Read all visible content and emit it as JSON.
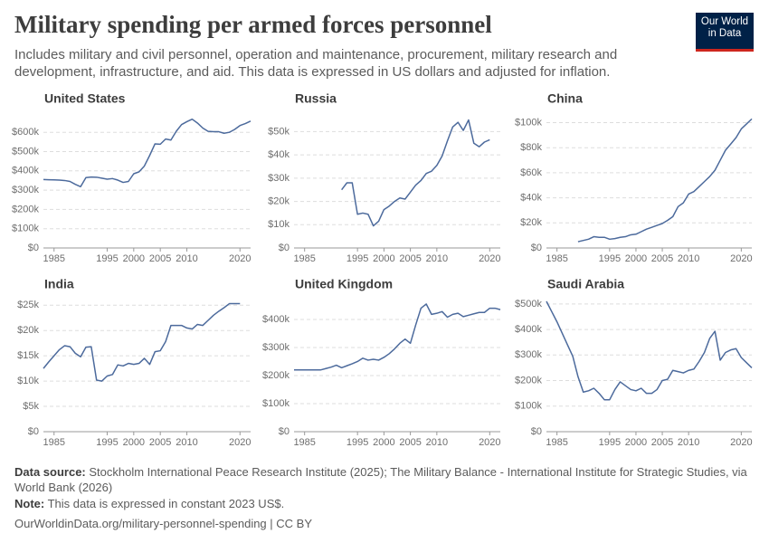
{
  "header": {
    "title": "Military spending per armed forces personnel",
    "subtitle": "Includes military and civil personnel, operation and maintenance, procurement, military research and development, infrastructure, and aid. This data is expressed in US dollars and adjusted for inflation."
  },
  "logo": {
    "line1": "Our World",
    "line2": "in Data"
  },
  "footer": {
    "source_label": "Data source:",
    "source": "Stockholm International Peace Research Institute (2025); The Military Balance - International Institute for Strategic Studies, via World Bank (2026)",
    "note_label": "Note:",
    "note": "This data is expressed in constant 2023 US$.",
    "url": "OurWorldinData.org/military-personnel-spending | CC BY"
  },
  "chart_data": [
    {
      "type": "line",
      "title": "United States",
      "color": "#4c6a9c",
      "grid": true,
      "x": [
        1983,
        1984,
        1985,
        1986,
        1987,
        1988,
        1989,
        1990,
        1991,
        1992,
        1993,
        1994,
        1995,
        1996,
        1997,
        1998,
        1999,
        2000,
        2001,
        2002,
        2003,
        2004,
        2005,
        2006,
        2007,
        2008,
        2009,
        2010,
        2011,
        2012,
        2013,
        2014,
        2015,
        2016,
        2017,
        2018,
        2019,
        2020,
        2021,
        2022
      ],
      "values": [
        355000,
        354000,
        353000,
        352000,
        350000,
        345000,
        330000,
        318000,
        365000,
        368000,
        367000,
        362000,
        357000,
        360000,
        352000,
        340000,
        345000,
        385000,
        395000,
        425000,
        480000,
        540000,
        538000,
        565000,
        560000,
        605000,
        640000,
        655000,
        668000,
        648000,
        622000,
        605000,
        603000,
        603000,
        595000,
        600000,
        615000,
        635000,
        645000,
        658000
      ],
      "xlim": [
        1983,
        2022
      ],
      "xticks": [
        1985,
        1995,
        2000,
        2005,
        2010,
        2020
      ],
      "ylim": [
        0,
        676000
      ],
      "yticks": [
        {
          "value": 0,
          "label": "$0"
        },
        {
          "value": 100000,
          "label": "$100k"
        },
        {
          "value": 200000,
          "label": "$200k"
        },
        {
          "value": 300000,
          "label": "$300k"
        },
        {
          "value": 400000,
          "label": "$400k"
        },
        {
          "value": 500000,
          "label": "$500k"
        },
        {
          "value": 600000,
          "label": "$600k"
        }
      ]
    },
    {
      "type": "line",
      "title": "Russia",
      "color": "#4c6a9c",
      "grid": true,
      "x": [
        1992,
        1993,
        1994,
        1995,
        1996,
        1997,
        1998,
        1999,
        2000,
        2001,
        2002,
        2003,
        2004,
        2005,
        2006,
        2007,
        2008,
        2009,
        2010,
        2011,
        2012,
        2013,
        2014,
        2015,
        2016,
        2017,
        2018,
        2019,
        2020,
        2021,
        2022
      ],
      "values": [
        25000,
        28000,
        28000,
        14500,
        15000,
        14500,
        9500,
        11500,
        16500,
        18000,
        20000,
        21500,
        21000,
        24000,
        27000,
        29000,
        32000,
        33000,
        35500,
        39500,
        46000,
        52000,
        54000,
        50500,
        55000,
        45000,
        43500,
        45500,
        46500,
        null,
        null
      ],
      "xlim": [
        1983,
        2022
      ],
      "xticks": [
        1985,
        1995,
        2000,
        2005,
        2010,
        2020
      ],
      "ylim": [
        0,
        56000
      ],
      "yticks": [
        {
          "value": 0,
          "label": "$0"
        },
        {
          "value": 10000,
          "label": "$10k"
        },
        {
          "value": 20000,
          "label": "$20k"
        },
        {
          "value": 30000,
          "label": "$30k"
        },
        {
          "value": 40000,
          "label": "$40k"
        },
        {
          "value": 50000,
          "label": "$50k"
        }
      ]
    },
    {
      "type": "line",
      "title": "China",
      "color": "#4c6a9c",
      "grid": true,
      "x": [
        1989,
        1990,
        1991,
        1992,
        1993,
        1994,
        1995,
        1996,
        1997,
        1998,
        1999,
        2000,
        2001,
        2002,
        2003,
        2004,
        2005,
        2006,
        2007,
        2008,
        2009,
        2010,
        2011,
        2012,
        2013,
        2014,
        2015,
        2016,
        2017,
        2018,
        2019,
        2020,
        2021,
        2022
      ],
      "values": [
        5000,
        6000,
        7000,
        9000,
        8500,
        8500,
        7000,
        7500,
        8500,
        9000,
        10500,
        11000,
        13000,
        15000,
        16500,
        18000,
        19500,
        22000,
        25000,
        33000,
        36000,
        43000,
        45000,
        49000,
        53000,
        57000,
        62000,
        70000,
        78000,
        83000,
        88000,
        95000,
        99000,
        103000
      ],
      "xlim": [
        1983,
        2022
      ],
      "xticks": [
        1985,
        1995,
        2000,
        2005,
        2010,
        2020
      ],
      "ylim": [
        0,
        104000
      ],
      "yticks": [
        {
          "value": 0,
          "label": "$0"
        },
        {
          "value": 20000,
          "label": "$20k"
        },
        {
          "value": 40000,
          "label": "$40k"
        },
        {
          "value": 60000,
          "label": "$60k"
        },
        {
          "value": 80000,
          "label": "$80k"
        },
        {
          "value": 100000,
          "label": "$100k"
        }
      ]
    },
    {
      "type": "line",
      "title": "India",
      "color": "#4c6a9c",
      "grid": true,
      "x": [
        1983,
        1984,
        1985,
        1986,
        1987,
        1988,
        1989,
        1990,
        1991,
        1992,
        1993,
        1994,
        1995,
        1996,
        1997,
        1998,
        1999,
        2000,
        2001,
        2002,
        2003,
        2004,
        2005,
        2006,
        2007,
        2008,
        2009,
        2010,
        2011,
        2012,
        2013,
        2014,
        2015,
        2016,
        2017,
        2018,
        2019,
        2020,
        2021,
        2022
      ],
      "values": [
        12500,
        13800,
        15000,
        16200,
        17000,
        16800,
        15500,
        14800,
        16700,
        16800,
        10200,
        10000,
        11000,
        11300,
        13200,
        13000,
        13500,
        13300,
        13500,
        14500,
        13300,
        15800,
        16000,
        17800,
        21000,
        21000,
        21000,
        20500,
        20300,
        21200,
        21000,
        22000,
        23000,
        23800,
        24500,
        25300,
        25300,
        25300,
        null,
        null
      ],
      "xlim": [
        1983,
        2022
      ],
      "xticks": [
        1985,
        1995,
        2000,
        2005,
        2010,
        2020
      ],
      "ylim": [
        0,
        25400
      ],
      "yticks": [
        {
          "value": 0,
          "label": "$0"
        },
        {
          "value": 5000,
          "label": "$5k"
        },
        {
          "value": 10000,
          "label": "$10k"
        },
        {
          "value": 15000,
          "label": "$15k"
        },
        {
          "value": 20000,
          "label": "$20k"
        },
        {
          "value": 25000,
          "label": "$25k"
        }
      ]
    },
    {
      "type": "line",
      "title": "United Kingdom",
      "color": "#4c6a9c",
      "grid": true,
      "x": [
        1983,
        1984,
        1985,
        1986,
        1987,
        1988,
        1989,
        1990,
        1991,
        1992,
        1993,
        1994,
        1995,
        1996,
        1997,
        1998,
        1999,
        2000,
        2001,
        2002,
        2003,
        2004,
        2005,
        2006,
        2007,
        2008,
        2009,
        2010,
        2011,
        2012,
        2013,
        2014,
        2015,
        2016,
        2017,
        2018,
        2019,
        2020,
        2021,
        2022
      ],
      "values": [
        220000,
        220000,
        220000,
        220000,
        220000,
        220000,
        225000,
        230000,
        237000,
        228000,
        235000,
        242000,
        250000,
        262000,
        255000,
        258000,
        255000,
        265000,
        278000,
        295000,
        315000,
        330000,
        315000,
        380000,
        440000,
        455000,
        418000,
        422000,
        428000,
        408000,
        418000,
        422000,
        410000,
        415000,
        420000,
        425000,
        425000,
        440000,
        440000,
        435000
      ],
      "xlim": [
        1983,
        2022
      ],
      "xticks": [
        1985,
        1995,
        2000,
        2005,
        2010,
        2020
      ],
      "ylim": [
        0,
        458000
      ],
      "yticks": [
        {
          "value": 0,
          "label": "$0"
        },
        {
          "value": 100000,
          "label": "$100k"
        },
        {
          "value": 200000,
          "label": "$200k"
        },
        {
          "value": 300000,
          "label": "$300k"
        },
        {
          "value": 400000,
          "label": "$400k"
        }
      ]
    },
    {
      "type": "line",
      "title": "Saudi Arabia",
      "color": "#4c6a9c",
      "grid": true,
      "x": [
        1983,
        1984,
        1985,
        1986,
        1987,
        1988,
        1989,
        1990,
        1991,
        1992,
        1993,
        1994,
        1995,
        1996,
        1997,
        1998,
        1999,
        2000,
        2001,
        2002,
        2003,
        2004,
        2005,
        2006,
        2007,
        2008,
        2009,
        2010,
        2011,
        2012,
        2013,
        2014,
        2015,
        2016,
        2017,
        2018,
        2019,
        2020,
        2021,
        2022
      ],
      "values": [
        510000,
        470000,
        430000,
        385000,
        340000,
        295000,
        215000,
        155000,
        160000,
        170000,
        150000,
        125000,
        125000,
        165000,
        195000,
        180000,
        165000,
        160000,
        170000,
        150000,
        150000,
        165000,
        200000,
        205000,
        240000,
        235000,
        230000,
        240000,
        245000,
        275000,
        310000,
        365000,
        393000,
        280000,
        310000,
        320000,
        325000,
        290000,
        270000,
        250000
      ],
      "xlim": [
        1983,
        2022
      ],
      "xticks": [
        1985,
        1995,
        2000,
        2005,
        2010,
        2020
      ],
      "ylim": [
        0,
        503000
      ],
      "yticks": [
        {
          "value": 0,
          "label": "$0"
        },
        {
          "value": 100000,
          "label": "$100k"
        },
        {
          "value": 200000,
          "label": "$200k"
        },
        {
          "value": 300000,
          "label": "$300k"
        },
        {
          "value": 400000,
          "label": "$400k"
        },
        {
          "value": 500000,
          "label": "$500k"
        }
      ]
    }
  ]
}
